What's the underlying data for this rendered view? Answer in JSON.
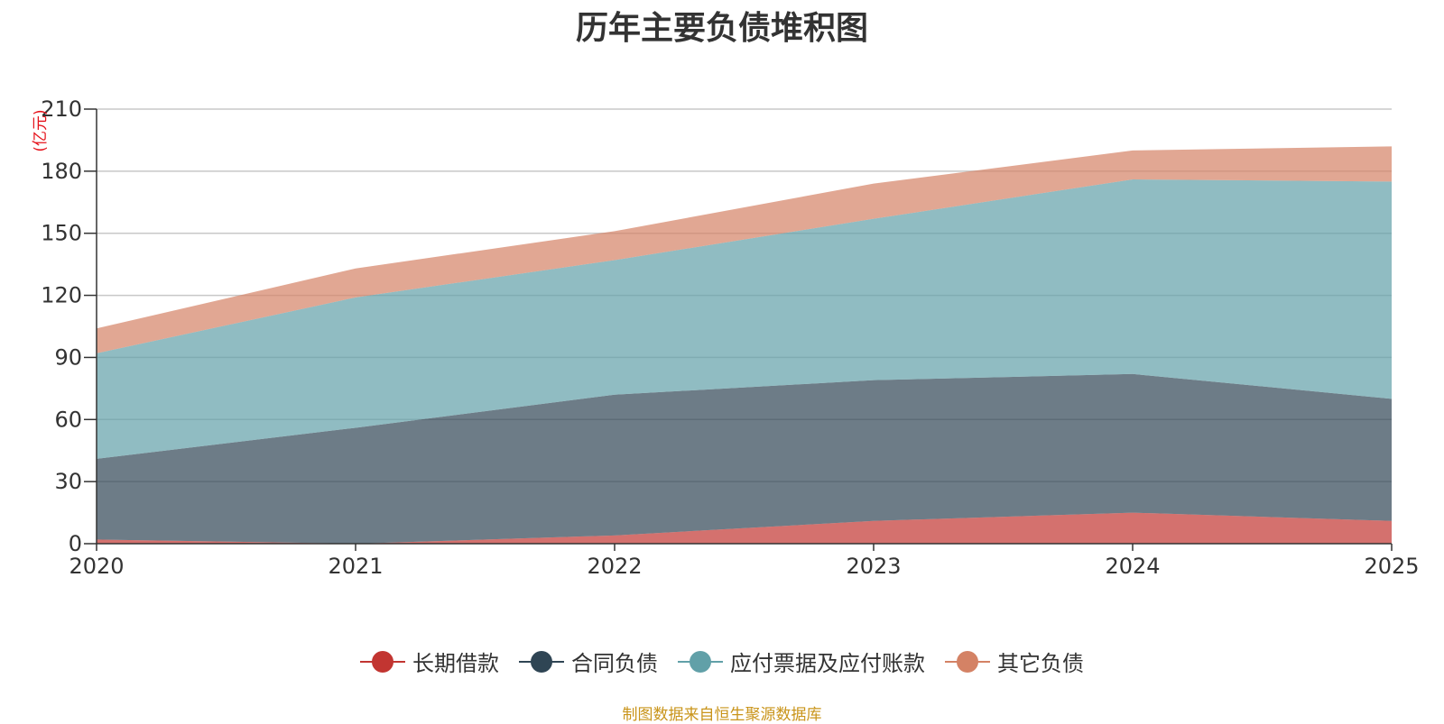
{
  "chart_data": {
    "type": "area",
    "stacked": true,
    "title": "历年主要负债堆积图",
    "ylabel": "(亿元)",
    "xlabel": "",
    "ylim": [
      0,
      210
    ],
    "yticks": [
      0,
      30,
      60,
      90,
      120,
      150,
      180,
      210
    ],
    "categories": [
      "2020",
      "2021",
      "2022",
      "2023",
      "2024",
      "2025"
    ],
    "series": [
      {
        "name": "长期借款",
        "color": "#c23531",
        "values": [
          2,
          0,
          4,
          11,
          15,
          11
        ]
      },
      {
        "name": "合同负债",
        "color": "#2f4554",
        "values": [
          39,
          56,
          68,
          68,
          67,
          59
        ]
      },
      {
        "name": "应付票据及应付账款",
        "color": "#61a0a8",
        "values": [
          51,
          63,
          65,
          78,
          94,
          105
        ]
      },
      {
        "name": "其它负债",
        "color": "#d48265",
        "values": [
          12,
          14,
          14,
          17,
          14,
          17
        ]
      }
    ],
    "legend_position": "bottom-center",
    "grid": true
  },
  "footer": {
    "source": "制图数据来自恒生聚源数据库"
  }
}
